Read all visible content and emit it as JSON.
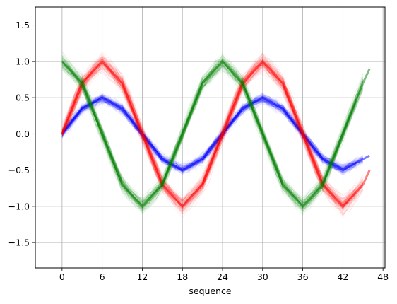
{
  "chart_data": {
    "type": "line",
    "title": "",
    "xlabel": "sequence",
    "ylabel": "",
    "xlim": [
      -4,
      48.3
    ],
    "ylim": [
      -1.85,
      1.75
    ],
    "xticks": [
      0,
      6,
      12,
      18,
      24,
      30,
      36,
      42,
      48
    ],
    "yticks": [
      1.5,
      1.0,
      0.5,
      0.0,
      -0.5,
      -1.0,
      -1.5
    ],
    "xtick_labels": [
      "0",
      "6",
      "12",
      "18",
      "24",
      "30",
      "36",
      "42",
      "48"
    ],
    "ytick_labels": [
      "1.5",
      "1.0",
      "0.5",
      "0.0",
      "−0.5",
      "−1.0",
      "−1.5"
    ],
    "grid": true,
    "legend": "none",
    "note": "many overlapping semi-transparent traces per series",
    "series": [
      {
        "color": "#0000ff",
        "x": [
          0,
          3,
          6,
          9,
          12,
          15,
          18,
          21,
          24,
          27,
          30,
          33,
          36,
          39,
          42,
          45,
          46
        ],
        "values": [
          0.0,
          0.35,
          0.5,
          0.35,
          0.0,
          -0.35,
          -0.5,
          -0.35,
          0.0,
          0.35,
          0.5,
          0.35,
          0.0,
          -0.35,
          -0.5,
          -0.35,
          -0.3
        ]
      },
      {
        "color": "#ff0000",
        "x": [
          0,
          3,
          6,
          9,
          12,
          15,
          18,
          21,
          24,
          27,
          30,
          33,
          36,
          39,
          42,
          45,
          46
        ],
        "values": [
          0.0,
          0.7,
          1.0,
          0.7,
          0.0,
          -0.7,
          -1.0,
          -0.7,
          0.0,
          0.7,
          1.0,
          0.7,
          0.0,
          -0.7,
          -1.0,
          -0.7,
          -0.5
        ]
      },
      {
        "color": "#008000",
        "x": [
          0,
          3,
          6,
          9,
          12,
          15,
          18,
          21,
          24,
          27,
          30,
          33,
          36,
          39,
          42,
          45,
          46
        ],
        "values": [
          1.0,
          0.7,
          0.0,
          -0.7,
          -1.0,
          -0.7,
          0.0,
          0.7,
          1.0,
          0.7,
          0.0,
          -0.7,
          -1.0,
          -0.7,
          0.0,
          0.7,
          0.9
        ]
      }
    ]
  }
}
